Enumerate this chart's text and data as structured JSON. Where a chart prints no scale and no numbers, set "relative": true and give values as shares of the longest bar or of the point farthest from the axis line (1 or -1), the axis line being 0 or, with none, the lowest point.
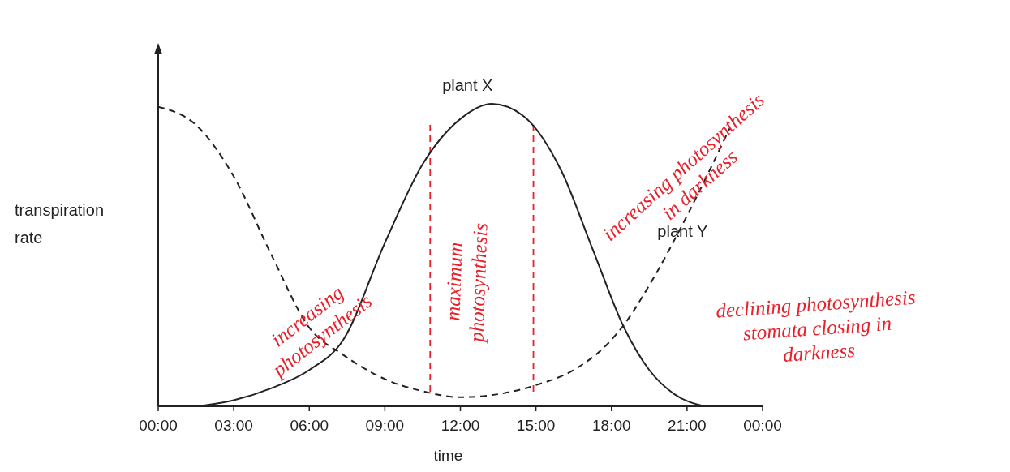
{
  "chart_data": {
    "type": "line",
    "xlabel": "time",
    "ylabel": "transpiration rate",
    "relative": true,
    "marker": "none",
    "legend": false,
    "xlim": [
      0,
      24
    ],
    "xticks": [
      {
        "value": 0,
        "label": "00:00"
      },
      {
        "value": 3,
        "label": "03:00"
      },
      {
        "value": 6,
        "label": "06:00"
      },
      {
        "value": 9,
        "label": "09:00"
      },
      {
        "value": 12,
        "label": "12:00"
      },
      {
        "value": 15,
        "label": "15:00"
      },
      {
        "value": 18,
        "label": "18:00"
      },
      {
        "value": 21,
        "label": "21:00"
      },
      {
        "value": 24,
        "label": "00:00"
      }
    ],
    "series": [
      {
        "name": "plant X",
        "color": "#222222",
        "line_style": "solid",
        "x": [
          1.5,
          3,
          4.5,
          6,
          7.35,
          9,
          10.5,
          12,
          13.25,
          14.5,
          16,
          17.25,
          18.5,
          19.5,
          20.5,
          21.7
        ],
        "values": [
          0,
          0.02,
          0.06,
          0.12,
          0.22,
          0.54,
          0.8,
          0.95,
          1,
          0.96,
          0.78,
          0.52,
          0.26,
          0.12,
          0.04,
          0
        ]
      },
      {
        "name": "plant Y",
        "color": "#222222",
        "line_style": "dashed",
        "x": [
          0,
          1.5,
          3,
          4.5,
          6,
          7.35,
          9,
          10.5,
          12,
          13.5,
          15,
          16.5,
          18,
          18.5,
          19.5,
          21,
          22.7
        ],
        "values": [
          0.99,
          0.93,
          0.76,
          0.5,
          0.26,
          0.17,
          0.09,
          0.05,
          0.03,
          0.04,
          0.07,
          0.12,
          0.22,
          0.27,
          0.4,
          0.63,
          0.92
        ]
      }
    ],
    "ref_lines": [
      {
        "axis": "x",
        "value": 10.8,
        "color": "#e8202a",
        "line_style": "dashed"
      },
      {
        "axis": "x",
        "value": 14.9,
        "color": "#e8202a",
        "line_style": "dashed"
      }
    ],
    "annotations": [
      "increasing photosynthesis",
      "maximum photosynthesis",
      "increasing photosynthesis in darkness",
      "declining photosynthesis stomata closing in darkness"
    ]
  }
}
